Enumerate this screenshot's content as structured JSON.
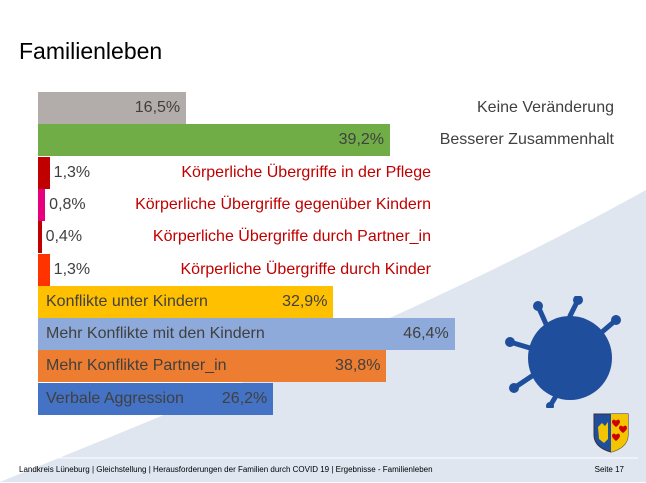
{
  "title": "Familienleben",
  "footer": {
    "text": "Landkreis Lüneburg | Gleichstellung | Herausforderungen der Familien durch COVID 19 | Ergebnisse - Familienleben",
    "page": "Seite 17"
  },
  "colors": {
    "background_curve": "#dfe6f0",
    "virus": "#1f4e9c",
    "label_red": "#c00000",
    "label_dark": "#404040"
  },
  "chart_data": {
    "type": "bar",
    "orientation": "horizontal",
    "title": "Familienleben",
    "xlim": [
      0,
      50
    ],
    "unit": "%",
    "categories": [
      "Keine Veränderung",
      "Besserer Zusammenhalt",
      "Körperliche Übergriffe in der Pflege",
      "Körperliche Übergriffe gegenüber Kindern",
      "Körperliche Übergriffe durch Partner_in",
      "Körperliche Übergriffe durch Kinder",
      "Konflikte unter Kindern",
      "Mehr Konflikte mit den Kindern",
      "Mehr Konflikte Partner_in",
      "Verbale Aggression"
    ],
    "values": [
      16.5,
      39.2,
      1.3,
      0.8,
      0.4,
      1.3,
      32.9,
      46.4,
      38.8,
      26.2
    ],
    "value_labels": [
      "16,5%",
      "39,2%",
      "1,3%",
      "0,8%",
      "0,4%",
      "1,3%",
      "32,9%",
      "46,4%",
      "38,8%",
      "26,2%"
    ],
    "bar_colors": [
      "#b2acaa",
      "#70ad47",
      "#c00000",
      "#e6007e",
      "#c00000",
      "#ff3300",
      "#ffc000",
      "#8eaadb",
      "#ed7d31",
      "#4472c4"
    ],
    "label_colors": [
      "#404040",
      "#404040",
      "#c00000",
      "#c00000",
      "#c00000",
      "#c00000",
      "#404040",
      "#404040",
      "#404040",
      "#404040"
    ]
  }
}
